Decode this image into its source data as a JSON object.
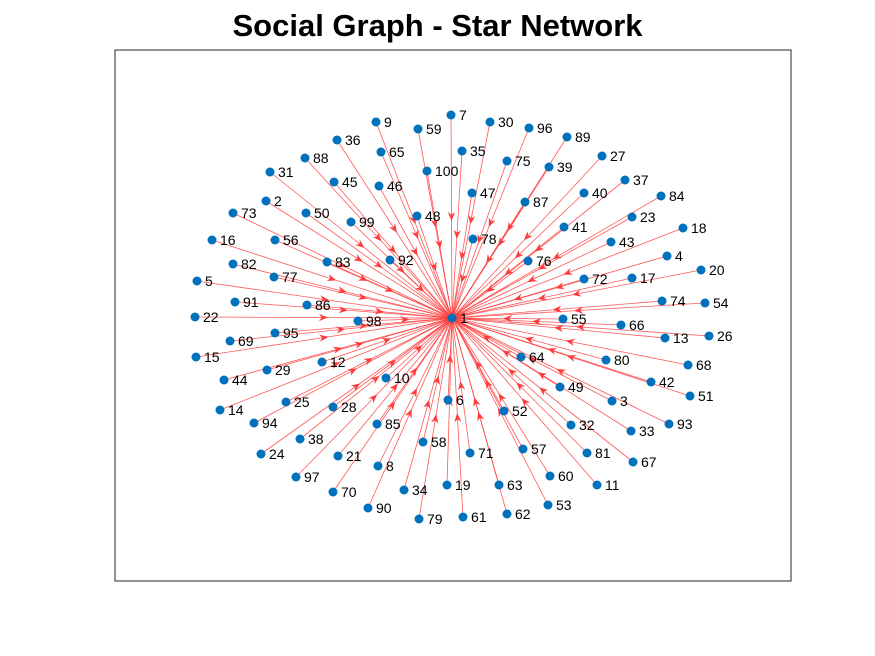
{
  "figure": {
    "title": "Social Graph - Star Network"
  },
  "graph": {
    "type": "directed-star",
    "hub": "1",
    "edge_color": "#ff3b3b",
    "node_color": "#0072bd",
    "edge_direction": "leaf-to-hub",
    "nodes": [
      {
        "id": "1"
      },
      {
        "id": "2"
      },
      {
        "id": "3"
      },
      {
        "id": "4"
      },
      {
        "id": "5"
      },
      {
        "id": "6"
      },
      {
        "id": "7"
      },
      {
        "id": "8"
      },
      {
        "id": "9"
      },
      {
        "id": "10"
      },
      {
        "id": "11"
      },
      {
        "id": "12"
      },
      {
        "id": "13"
      },
      {
        "id": "14"
      },
      {
        "id": "15"
      },
      {
        "id": "16"
      },
      {
        "id": "17"
      },
      {
        "id": "18"
      },
      {
        "id": "19"
      },
      {
        "id": "20"
      },
      {
        "id": "21"
      },
      {
        "id": "22"
      },
      {
        "id": "23"
      },
      {
        "id": "24"
      },
      {
        "id": "25"
      },
      {
        "id": "26"
      },
      {
        "id": "27"
      },
      {
        "id": "28"
      },
      {
        "id": "29"
      },
      {
        "id": "30"
      },
      {
        "id": "31"
      },
      {
        "id": "32"
      },
      {
        "id": "33"
      },
      {
        "id": "34"
      },
      {
        "id": "35"
      },
      {
        "id": "36"
      },
      {
        "id": "37"
      },
      {
        "id": "38"
      },
      {
        "id": "39"
      },
      {
        "id": "40"
      },
      {
        "id": "41"
      },
      {
        "id": "42"
      },
      {
        "id": "43"
      },
      {
        "id": "44"
      },
      {
        "id": "45"
      },
      {
        "id": "46"
      },
      {
        "id": "47"
      },
      {
        "id": "48"
      },
      {
        "id": "49"
      },
      {
        "id": "50"
      },
      {
        "id": "51"
      },
      {
        "id": "52"
      },
      {
        "id": "53"
      },
      {
        "id": "54"
      },
      {
        "id": "55"
      },
      {
        "id": "56"
      },
      {
        "id": "57"
      },
      {
        "id": "58"
      },
      {
        "id": "59"
      },
      {
        "id": "60"
      },
      {
        "id": "61"
      },
      {
        "id": "62"
      },
      {
        "id": "63"
      },
      {
        "id": "64"
      },
      {
        "id": "65"
      },
      {
        "id": "66"
      },
      {
        "id": "67"
      },
      {
        "id": "68"
      },
      {
        "id": "69"
      },
      {
        "id": "70"
      },
      {
        "id": "71"
      },
      {
        "id": "72"
      },
      {
        "id": "73"
      },
      {
        "id": "74"
      },
      {
        "id": "75"
      },
      {
        "id": "76"
      },
      {
        "id": "77"
      },
      {
        "id": "78"
      },
      {
        "id": "79"
      },
      {
        "id": "80"
      },
      {
        "id": "81"
      },
      {
        "id": "82"
      },
      {
        "id": "83"
      },
      {
        "id": "84"
      },
      {
        "id": "85"
      },
      {
        "id": "86"
      },
      {
        "id": "87"
      },
      {
        "id": "88"
      },
      {
        "id": "89"
      },
      {
        "id": "90"
      },
      {
        "id": "91"
      },
      {
        "id": "92"
      },
      {
        "id": "93"
      },
      {
        "id": "94"
      },
      {
        "id": "95"
      },
      {
        "id": "96"
      },
      {
        "id": "97"
      },
      {
        "id": "98"
      },
      {
        "id": "99"
      },
      {
        "id": "100"
      }
    ]
  }
}
